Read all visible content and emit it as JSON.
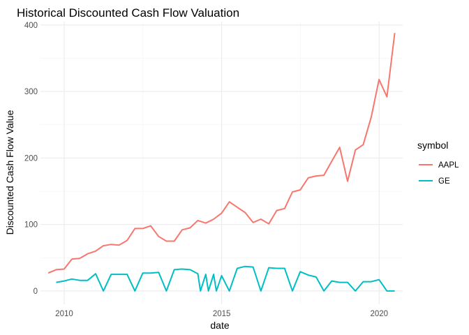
{
  "chart_data": {
    "type": "line",
    "title": "Historical Discounted Cash Flow Valuation",
    "xlabel": "date",
    "ylabel": "Discounted Cash Flow Value",
    "xlim": [
      "2009-04-01",
      "2020-09-30"
    ],
    "ylim": [
      -20,
      405
    ],
    "x_ticks": [
      {
        "label": "2010",
        "date": "2010-01-01"
      },
      {
        "label": "2015",
        "date": "2015-01-01"
      },
      {
        "label": "2020",
        "date": "2020-01-01"
      }
    ],
    "y_ticks": [
      0,
      100,
      200,
      300,
      400
    ],
    "grid": true,
    "legend": {
      "title": "symbol",
      "position": "right"
    },
    "series": [
      {
        "name": "AAPL",
        "color": "#F8766D",
        "points": [
          [
            "2009-06-30",
            27
          ],
          [
            "2009-09-30",
            32
          ],
          [
            "2009-12-31",
            33
          ],
          [
            "2010-03-31",
            48
          ],
          [
            "2010-06-30",
            49
          ],
          [
            "2010-09-30",
            56
          ],
          [
            "2010-12-31",
            60
          ],
          [
            "2011-03-31",
            68
          ],
          [
            "2011-06-30",
            70
          ],
          [
            "2011-09-30",
            69
          ],
          [
            "2011-12-31",
            76
          ],
          [
            "2012-03-31",
            94
          ],
          [
            "2012-06-30",
            94
          ],
          [
            "2012-09-30",
            98
          ],
          [
            "2012-12-31",
            82
          ],
          [
            "2013-03-31",
            75
          ],
          [
            "2013-06-30",
            75
          ],
          [
            "2013-09-30",
            92
          ],
          [
            "2013-12-31",
            95
          ],
          [
            "2014-03-31",
            106
          ],
          [
            "2014-06-30",
            102
          ],
          [
            "2014-09-30",
            108
          ],
          [
            "2014-12-31",
            117
          ],
          [
            "2015-03-31",
            134
          ],
          [
            "2015-06-30",
            126
          ],
          [
            "2015-09-30",
            118
          ],
          [
            "2015-12-31",
            103
          ],
          [
            "2016-03-31",
            108
          ],
          [
            "2016-06-30",
            101
          ],
          [
            "2016-09-30",
            121
          ],
          [
            "2016-12-31",
            124
          ],
          [
            "2017-03-31",
            149
          ],
          [
            "2017-06-30",
            152
          ],
          [
            "2017-09-30",
            170
          ],
          [
            "2017-12-31",
            173
          ],
          [
            "2018-03-31",
            174
          ],
          [
            "2018-06-30",
            195
          ],
          [
            "2018-09-30",
            216
          ],
          [
            "2018-12-31",
            165
          ],
          [
            "2019-03-31",
            212
          ],
          [
            "2019-06-30",
            220
          ],
          [
            "2019-09-30",
            261
          ],
          [
            "2019-12-31",
            318
          ],
          [
            "2020-03-31",
            292
          ],
          [
            "2020-06-30",
            388
          ]
        ]
      },
      {
        "name": "GE",
        "color": "#00BFC4",
        "points": [
          [
            "2009-09-30",
            13
          ],
          [
            "2009-12-31",
            15
          ],
          [
            "2010-03-31",
            18
          ],
          [
            "2010-06-30",
            16
          ],
          [
            "2010-09-30",
            16
          ],
          [
            "2010-12-31",
            26
          ],
          [
            "2011-03-31",
            0
          ],
          [
            "2011-06-30",
            25
          ],
          [
            "2011-09-30",
            25
          ],
          [
            "2011-12-31",
            25
          ],
          [
            "2012-03-31",
            0
          ],
          [
            "2012-06-30",
            27
          ],
          [
            "2012-09-30",
            27
          ],
          [
            "2012-12-31",
            28
          ],
          [
            "2013-03-31",
            0
          ],
          [
            "2013-06-30",
            32
          ],
          [
            "2013-09-30",
            33
          ],
          [
            "2013-12-31",
            32
          ],
          [
            "2014-03-31",
            26
          ],
          [
            "2014-04-30",
            0
          ],
          [
            "2014-06-30",
            25
          ],
          [
            "2014-07-31",
            0
          ],
          [
            "2014-09-30",
            25
          ],
          [
            "2014-10-31",
            0
          ],
          [
            "2014-12-31",
            23
          ],
          [
            "2015-03-31",
            0
          ],
          [
            "2015-06-30",
            34
          ],
          [
            "2015-09-30",
            37
          ],
          [
            "2015-12-31",
            36
          ],
          [
            "2016-03-31",
            0
          ],
          [
            "2016-06-30",
            35
          ],
          [
            "2016-09-30",
            34
          ],
          [
            "2016-12-31",
            34
          ],
          [
            "2017-03-31",
            0
          ],
          [
            "2017-06-30",
            29
          ],
          [
            "2017-09-30",
            24
          ],
          [
            "2017-12-31",
            21
          ],
          [
            "2018-03-31",
            0
          ],
          [
            "2018-06-30",
            15
          ],
          [
            "2018-09-30",
            13
          ],
          [
            "2018-12-31",
            13
          ],
          [
            "2019-03-31",
            0
          ],
          [
            "2019-06-30",
            14
          ],
          [
            "2019-09-30",
            14
          ],
          [
            "2019-12-31",
            17
          ],
          [
            "2020-03-31",
            0
          ],
          [
            "2020-06-30",
            0
          ]
        ]
      }
    ]
  }
}
